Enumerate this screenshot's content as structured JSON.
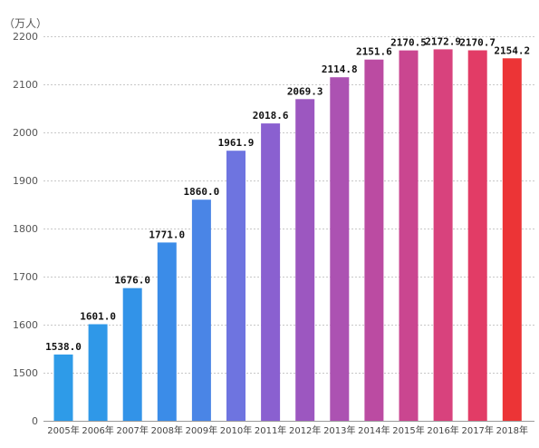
{
  "chart_data": {
    "type": "bar",
    "unit": "（万人）",
    "categories": [
      "2005年",
      "2006年",
      "2007年",
      "2008年",
      "2009年",
      "2010年",
      "2011年",
      "2012年",
      "2013年",
      "2014年",
      "2015年",
      "2016年",
      "2017年",
      "2018年"
    ],
    "values": [
      1538.0,
      1601.0,
      1676.0,
      1771.0,
      1860.0,
      1961.9,
      2018.6,
      2069.3,
      2114.8,
      2151.6,
      2170.5,
      2172.9,
      2170.7,
      2154.2
    ],
    "value_labels": [
      "1538.0",
      "1601.0",
      "1676.0",
      "1771.0",
      "1860.0",
      "1961.9",
      "2018.6",
      "2069.3",
      "2114.8",
      "2151.6",
      "2170.5",
      "2172.9",
      "2170.7",
      "2154.2"
    ],
    "yticks": [
      "0",
      "1500",
      "1600",
      "1700",
      "1800",
      "1900",
      "2000",
      "2100",
      "2200"
    ],
    "ylim": [
      1400,
      2200
    ],
    "axis_break": true,
    "grid": true,
    "colors": [
      "#2e9be8",
      "#2f98e8",
      "#3293e8",
      "#3b8ce8",
      "#4a85e6",
      "#6e74e0",
      "#8a60d0",
      "#9c57c0",
      "#ac52b2",
      "#bb4ba2",
      "#ca4690",
      "#d8427d",
      "#e23c66",
      "#ec3436"
    ]
  }
}
